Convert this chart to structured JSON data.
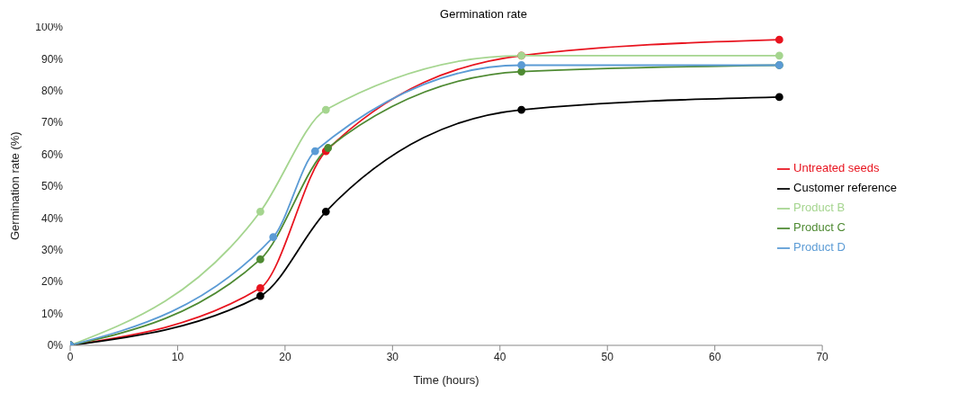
{
  "chart_data": {
    "type": "line",
    "title": "Germination rate",
    "xlabel": "Time (hours)",
    "ylabel": "Germination rate (%)",
    "xlim": [
      0,
      70
    ],
    "xticks": [
      0,
      10,
      20,
      30,
      40,
      50,
      60,
      70
    ],
    "ylim": [
      0,
      100
    ],
    "yticks": [
      {
        "value": 0,
        "label": "0%"
      },
      {
        "value": 10,
        "label": "10%"
      },
      {
        "value": 20,
        "label": "20%"
      },
      {
        "value": 30,
        "label": "30%"
      },
      {
        "value": 40,
        "label": "40%"
      },
      {
        "value": 50,
        "label": "50%"
      },
      {
        "value": 60,
        "label": "60%"
      },
      {
        "value": 70,
        "label": "70%"
      },
      {
        "value": 80,
        "label": "80%"
      },
      {
        "value": 90,
        "label": "90%"
      },
      {
        "value": 100,
        "label": "100%"
      }
    ],
    "grid": false,
    "legend": "right",
    "marker": "circle",
    "line_style": "solid",
    "series": [
      {
        "name": "Untreated seeds",
        "color": "#e8141f",
        "x": [
          0,
          17.7,
          23.8,
          42,
          66
        ],
        "values": [
          0,
          18,
          61,
          91,
          96
        ]
      },
      {
        "name": "Customer reference",
        "color": "#000000",
        "x": [
          0,
          17.7,
          23.8,
          42,
          66
        ],
        "values": [
          0,
          15.5,
          42,
          74,
          78
        ]
      },
      {
        "name": "Product B",
        "color": "#a5d58f",
        "x": [
          0,
          17.7,
          23.8,
          42,
          66
        ],
        "values": [
          0,
          42,
          74,
          91,
          91
        ]
      },
      {
        "name": "Product C",
        "color": "#4e8a32",
        "x": [
          0,
          17.7,
          24,
          42,
          66
        ],
        "values": [
          0,
          27,
          62,
          86,
          88
        ]
      },
      {
        "name": "Product D",
        "color": "#5b9bd5",
        "x": [
          0,
          18.9,
          22.8,
          42,
          66
        ],
        "values": [
          0,
          34,
          61,
          88,
          88
        ]
      }
    ]
  }
}
